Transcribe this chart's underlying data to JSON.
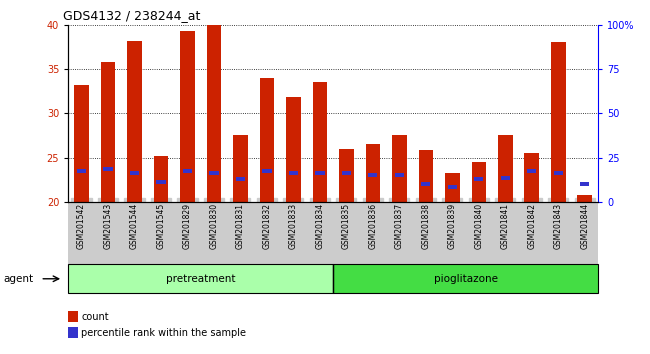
{
  "title": "GDS4132 / 238244_at",
  "samples": [
    "GSM201542",
    "GSM201543",
    "GSM201544",
    "GSM201545",
    "GSM201829",
    "GSM201830",
    "GSM201831",
    "GSM201832",
    "GSM201833",
    "GSM201834",
    "GSM201835",
    "GSM201836",
    "GSM201837",
    "GSM201838",
    "GSM201839",
    "GSM201840",
    "GSM201841",
    "GSM201842",
    "GSM201843",
    "GSM201844"
  ],
  "count_values": [
    33.2,
    35.8,
    38.2,
    25.2,
    39.3,
    40.0,
    27.5,
    34.0,
    31.8,
    33.5,
    26.0,
    26.5,
    27.5,
    25.8,
    23.3,
    24.5,
    27.5,
    25.5,
    38.0,
    20.8
  ],
  "percentile_values": [
    23.3,
    23.5,
    23.0,
    22.0,
    23.3,
    23.0,
    22.3,
    23.2,
    23.0,
    23.0,
    23.0,
    22.8,
    22.8,
    21.8,
    21.5,
    22.3,
    22.5,
    23.2,
    23.0,
    21.8
  ],
  "bar_bottom": 20,
  "count_color": "#cc2200",
  "percentile_color": "#3333cc",
  "ylim_left": [
    20,
    40
  ],
  "ylim_right": [
    0,
    100
  ],
  "yticks_left": [
    20,
    25,
    30,
    35,
    40
  ],
  "yticks_right": [
    0,
    25,
    50,
    75,
    100
  ],
  "ytick_labels_right": [
    "0",
    "25",
    "50",
    "75",
    "100%"
  ],
  "groups": [
    {
      "label": "pretreatment",
      "start": 0,
      "end": 9,
      "color": "#aaffaa"
    },
    {
      "label": "pioglitazone",
      "start": 10,
      "end": 19,
      "color": "#44dd44"
    }
  ],
  "agent_label": "agent",
  "legend_items": [
    {
      "label": "count",
      "color": "#cc2200"
    },
    {
      "label": "percentile rank within the sample",
      "color": "#3333cc"
    }
  ],
  "tick_bg_color": "#cccccc",
  "plot_bg": "#ffffff",
  "bar_width": 0.55,
  "blue_bar_width": 0.35,
  "blue_bar_height": 0.45
}
